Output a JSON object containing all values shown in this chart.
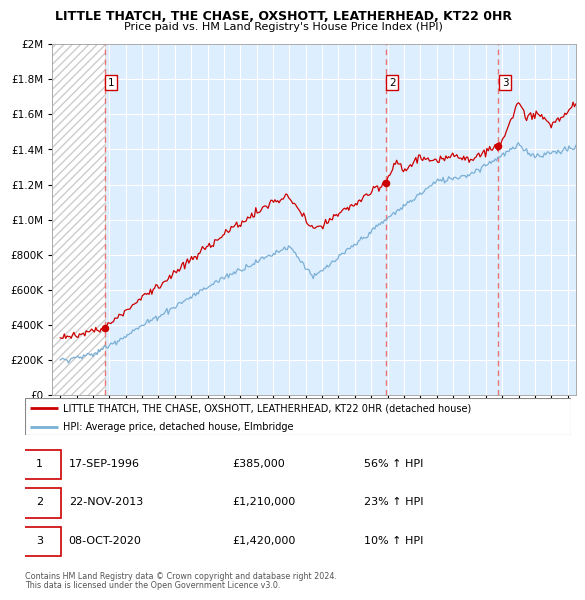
{
  "title": "LITTLE THATCH, THE CHASE, OXSHOTT, LEATHERHEAD, KT22 0HR",
  "subtitle": "Price paid vs. HM Land Registry's House Price Index (HPI)",
  "legend_property": "LITTLE THATCH, THE CHASE, OXSHOTT, LEATHERHEAD, KT22 0HR (detached house)",
  "legend_hpi": "HPI: Average price, detached house, Elmbridge",
  "property_color": "#cc0000",
  "hpi_color": "#7bafd4",
  "sale_color": "#cc0000",
  "vline_color": "#e87474",
  "chart_bg": "#ddeeff",
  "hatch_color": "#bbccdd",
  "sales": [
    {
      "label": "1",
      "date_str": "17-SEP-1996",
      "year": 1996.72,
      "price": 385000,
      "pct": "56%",
      "dir": "↑"
    },
    {
      "label": "2",
      "date_str": "22-NOV-2013",
      "year": 2013.89,
      "price": 1210000,
      "pct": "23%",
      "dir": "↑"
    },
    {
      "label": "3",
      "date_str": "08-OCT-2020",
      "year": 2020.77,
      "price": 1420000,
      "pct": "10%",
      "dir": "↑"
    }
  ],
  "footer1": "Contains HM Land Registry data © Crown copyright and database right 2024.",
  "footer2": "This data is licensed under the Open Government Licence v3.0.",
  "ylim": [
    0,
    2000000
  ],
  "xlim": [
    1993.5,
    2025.5
  ],
  "yticks": [
    0,
    200000,
    400000,
    600000,
    800000,
    1000000,
    1200000,
    1400000,
    1600000,
    1800000,
    2000000
  ],
  "xticks": [
    1994,
    1995,
    1996,
    1997,
    1998,
    1999,
    2000,
    2001,
    2002,
    2003,
    2004,
    2005,
    2006,
    2007,
    2008,
    2009,
    2010,
    2011,
    2012,
    2013,
    2014,
    2015,
    2016,
    2017,
    2018,
    2019,
    2020,
    2021,
    2022,
    2023,
    2024,
    2025
  ]
}
